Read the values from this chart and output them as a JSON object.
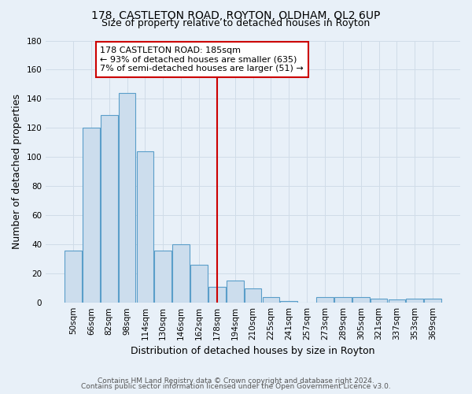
{
  "title": "178, CASTLETON ROAD, ROYTON, OLDHAM, OL2 6UP",
  "subtitle": "Size of property relative to detached houses in Royton",
  "xlabel": "Distribution of detached houses by size in Royton",
  "ylabel": "Number of detached properties",
  "categories": [
    "50sqm",
    "66sqm",
    "82sqm",
    "98sqm",
    "114sqm",
    "130sqm",
    "146sqm",
    "162sqm",
    "178sqm",
    "194sqm",
    "210sqm",
    "225sqm",
    "241sqm",
    "257sqm",
    "273sqm",
    "289sqm",
    "305sqm",
    "321sqm",
    "337sqm",
    "353sqm",
    "369sqm"
  ],
  "values": [
    36,
    120,
    129,
    144,
    104,
    36,
    40,
    26,
    11,
    15,
    10,
    4,
    1,
    0,
    4,
    4,
    4,
    3,
    2,
    3,
    3
  ],
  "bar_color": "#ccdded",
  "bar_edge_color": "#5a9ec9",
  "vline_x_index": 8,
  "vline_color": "#cc0000",
  "annotation_text": "178 CASTLETON ROAD: 185sqm\n← 93% of detached houses are smaller (635)\n7% of semi-detached houses are larger (51) →",
  "annotation_box_color": "#ffffff",
  "annotation_box_edge": "#cc0000",
  "ylim": [
    0,
    180
  ],
  "yticks": [
    0,
    20,
    40,
    60,
    80,
    100,
    120,
    140,
    160,
    180
  ],
  "footnote_line1": "Contains HM Land Registry data © Crown copyright and database right 2024.",
  "footnote_line2": "Contains public sector information licensed under the Open Government Licence v3.0.",
  "background_color": "#e8f0f8",
  "grid_color": "#d0dce8",
  "title_fontsize": 10,
  "subtitle_fontsize": 9,
  "axis_label_fontsize": 9,
  "tick_fontsize": 7.5,
  "annotation_fontsize": 8,
  "footnote_fontsize": 6.5
}
